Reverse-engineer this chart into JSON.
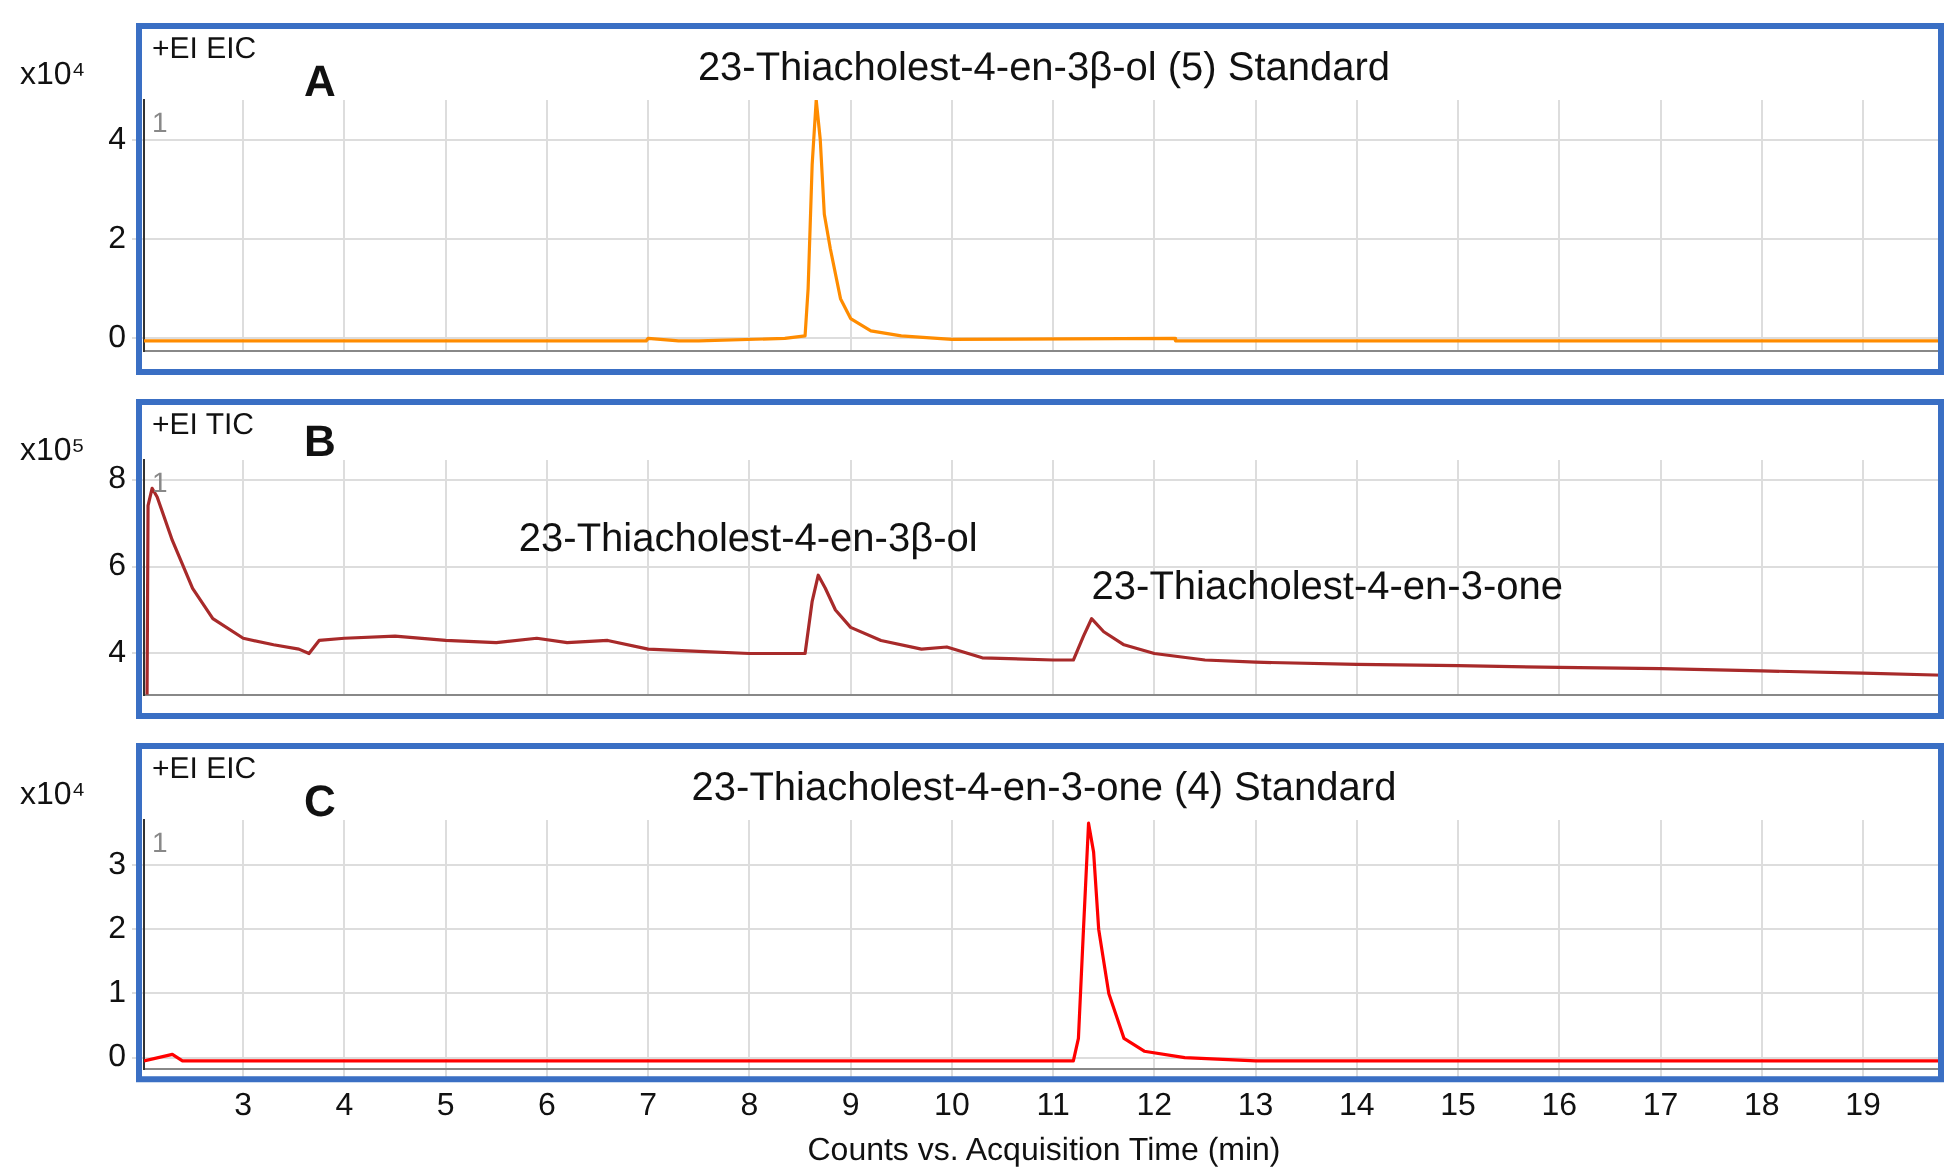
{
  "chart_data": [
    {
      "type": "line",
      "title": "23-Thiacholest-4-en-3β-ol (5) Standard",
      "ylabel": "x10⁴",
      "annotations": [
        "+EI EIC",
        "A",
        "1"
      ],
      "color": "#ff8c00",
      "x": [
        2.02,
        6.98,
        7.0,
        7.3,
        7.5,
        8.35,
        8.55,
        8.58,
        8.62,
        8.66,
        8.7,
        8.74,
        8.8,
        8.9,
        9.0,
        9.2,
        9.5,
        10.0,
        12.2,
        12.21,
        19.8
      ],
      "values": [
        -0.05,
        -0.05,
        0.0,
        -0.05,
        -0.05,
        0.0,
        0.05,
        1.0,
        3.5,
        4.8,
        4.0,
        2.5,
        1.8,
        0.8,
        0.4,
        0.15,
        0.05,
        -0.02,
        0.0,
        -0.05,
        -0.05
      ],
      "xlim": [
        2.02,
        19.8
      ],
      "xticks": [
        3,
        4,
        5,
        6,
        7,
        8,
        9,
        10,
        11,
        12,
        13,
        14,
        15,
        16,
        17,
        18,
        19
      ],
      "ylim": [
        -0.25,
        4.8
      ],
      "yticks": [
        0,
        2,
        4
      ],
      "grid": true,
      "tick_labels": "y"
    },
    {
      "type": "line",
      "ylabel": "x10⁵",
      "annotations": [
        "+EI TIC",
        "B",
        "1",
        {
          "text": "23-Thiacholest-4-en-3β-ol",
          "x": 8.68,
          "y": 5.8
        },
        {
          "text": "23-Thiacholest-4-en-3-one",
          "x": 11.38,
          "y": 4.8
        }
      ],
      "color": "#a82a2a",
      "x": [
        2.05,
        2.06,
        2.1,
        2.15,
        2.3,
        2.5,
        2.7,
        3.0,
        3.3,
        3.55,
        3.65,
        3.75,
        4.0,
        4.5,
        5.0,
        5.5,
        5.9,
        6.2,
        6.6,
        7.0,
        7.5,
        8.0,
        8.55,
        8.62,
        8.68,
        8.75,
        8.85,
        9.0,
        9.3,
        9.7,
        9.95,
        10.3,
        11.0,
        11.2,
        11.3,
        11.38,
        11.5,
        11.7,
        12.0,
        12.5,
        13.0,
        14.0,
        15.0,
        16.0,
        17.0,
        18.0,
        19.0,
        19.8
      ],
      "values": [
        3.05,
        7.4,
        7.8,
        7.6,
        6.6,
        5.5,
        4.8,
        4.35,
        4.2,
        4.1,
        4.0,
        4.3,
        4.35,
        4.4,
        4.3,
        4.25,
        4.35,
        4.25,
        4.3,
        4.1,
        4.05,
        4.0,
        4.0,
        5.2,
        5.8,
        5.5,
        5.0,
        4.6,
        4.3,
        4.1,
        4.15,
        3.9,
        3.85,
        3.85,
        4.4,
        4.8,
        4.5,
        4.2,
        4.0,
        3.85,
        3.8,
        3.75,
        3.72,
        3.68,
        3.65,
        3.6,
        3.55,
        3.5
      ],
      "xlim": [
        2.02,
        19.8
      ],
      "xticks": [
        3,
        4,
        5,
        6,
        7,
        8,
        9,
        10,
        11,
        12,
        13,
        14,
        15,
        16,
        17,
        18,
        19
      ],
      "ylim": [
        3.05,
        8.45
      ],
      "yticks": [
        4,
        6,
        8
      ],
      "grid": true,
      "tick_labels": "y"
    },
    {
      "type": "line",
      "title": "23-Thiacholest-4-en-3-one (4) Standard",
      "xlabel": "Counts vs. Acquisition Time (min)",
      "ylabel": "x10⁴",
      "annotations": [
        "+EI EIC",
        "C",
        "1"
      ],
      "color": "#ff0000",
      "x": [
        2.02,
        2.3,
        2.4,
        11.2,
        11.25,
        11.3,
        11.35,
        11.4,
        11.45,
        11.55,
        11.7,
        11.9,
        12.3,
        13.0,
        19.8
      ],
      "values": [
        -0.05,
        0.05,
        -0.05,
        -0.05,
        0.3,
        2.0,
        3.65,
        3.2,
        2.0,
        1.0,
        0.3,
        0.1,
        0.0,
        -0.05,
        -0.05
      ],
      "xlim": [
        2.02,
        19.8
      ],
      "xticks": [
        3,
        4,
        5,
        6,
        7,
        8,
        9,
        10,
        11,
        12,
        13,
        14,
        15,
        16,
        17,
        18,
        19
      ],
      "ylim": [
        -0.18,
        3.7
      ],
      "yticks": [
        0,
        1,
        2,
        3
      ],
      "grid": true
    }
  ]
}
